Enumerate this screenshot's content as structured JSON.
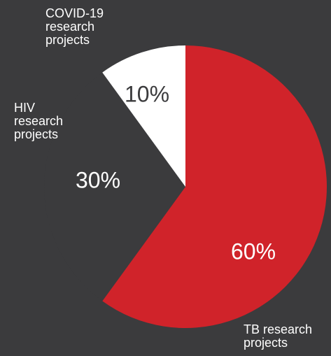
{
  "chart_data": {
    "type": "pie",
    "categories": [
      "TB research projects",
      "HIV research projects",
      "COVID-19 research projects"
    ],
    "values": [
      60,
      30,
      10
    ],
    "value_labels": [
      "60%",
      "30%",
      "10%"
    ],
    "colors": [
      "#d0232a",
      "#3b3b3d",
      "#ffffff"
    ]
  }
}
